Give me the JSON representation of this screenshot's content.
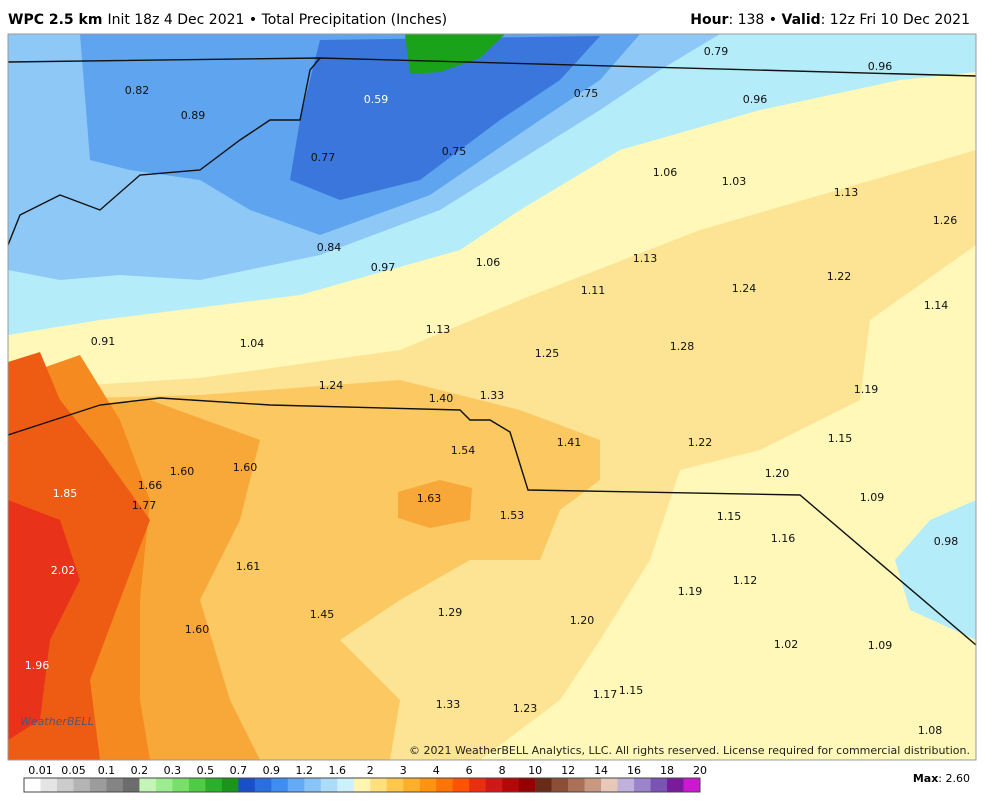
{
  "header": {
    "left": [
      "WPC 2.5 km",
      "Init 18z 4 Dec 2021 • Total Precipitation (Inches)"
    ],
    "right": [
      "Hour",
      ": 138 • ",
      "Valid",
      ": 12z Fri 10 Dec 2021"
    ]
  },
  "map_labels": [
    "0.79",
    "0.96",
    "0.82",
    "0.59",
    "0.75",
    "0.96",
    "0.89",
    "0.77",
    "0.75",
    "1.06",
    "1.03",
    "1.13",
    "1.26",
    "0.84",
    "0.97",
    "1.06",
    "1.13",
    "1.11",
    "1.24",
    "1.22",
    "1.14",
    "0.91",
    "1.04",
    "1.13",
    "1.25",
    "1.28",
    "1.24",
    "1.40",
    "1.33",
    "1.19",
    "1.41",
    "1.22",
    "1.15",
    "1.54",
    "1.60",
    "1.60",
    "1.20",
    "1.66",
    "1.85",
    "1.77",
    "1.63",
    "1.53",
    "1.09",
    "1.15",
    "1.16",
    "0.98",
    "2.02",
    "1.61",
    "1.12",
    "1.19",
    "1.45",
    "1.29",
    "1.20",
    "1.60",
    "1.02",
    "1.09",
    "1.96",
    "1.17",
    "1.15",
    "1.33",
    "1.23",
    "1.08"
  ],
  "logo": "WeatherBELL",
  "copyright": "© 2021 WeatherBELL Analytics, LLC. All rights reserved. License required for commercial distribution.",
  "colorbar": {
    "labels": [
      "0.01",
      "0.05",
      "0.1",
      "0.2",
      "0.3",
      "0.5",
      "0.7",
      "0.9",
      "1.2",
      "1.6",
      "2",
      "3",
      "4",
      "6",
      "8",
      "10",
      "12",
      "14",
      "16",
      "18",
      "20"
    ],
    "colors": [
      "#ffffff",
      "#e4e4e4",
      "#cccccc",
      "#b4b4b4",
      "#9c9c9c",
      "#848484",
      "#6c6c6c",
      "#c4f4b8",
      "#9cec90",
      "#78e068",
      "#50cc44",
      "#2cb02c",
      "#1a941a",
      "#1a4fc8",
      "#2a6ee0",
      "#3c8ef0",
      "#64aaf6",
      "#88c4f8",
      "#acdcf8",
      "#ccf0fc",
      "#fff4b0",
      "#ffe07c",
      "#ffc84c",
      "#ffb02a",
      "#ff9410",
      "#ff7406",
      "#ff5204",
      "#ea2e10",
      "#d01818",
      "#b40808",
      "#960000",
      "#6a2a18",
      "#8c4e36",
      "#aa7058",
      "#c89880",
      "#e8c8b8",
      "#c0b0dc",
      "#9c84cc",
      "#7a54b4",
      "#7a1a9c",
      "#cc18d0"
    ]
  },
  "max": [
    "Max",
    ": 2.60"
  ]
}
